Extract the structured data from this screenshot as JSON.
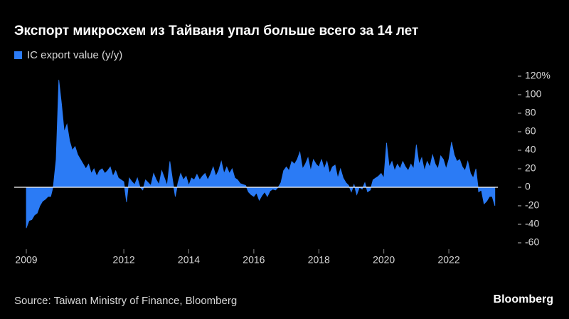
{
  "chart_data": {
    "type": "area",
    "title": "Экспорт микросхем из Тайваня упал больше всего за 14 лет",
    "source": "Source: Taiwan Ministry of Finance, Bloomberg",
    "brand": "Bloomberg",
    "categories": [
      "2009",
      null,
      null,
      null,
      null,
      null,
      null,
      null,
      null,
      null,
      null,
      null,
      null,
      null,
      null,
      null,
      null,
      null,
      null,
      null,
      null,
      null,
      null,
      null,
      null,
      null,
      null,
      null,
      null,
      null,
      null,
      null,
      null,
      null,
      null,
      null,
      "2012",
      null,
      null,
      null,
      null,
      null,
      null,
      null,
      null,
      null,
      null,
      null,
      null,
      null,
      null,
      null,
      null,
      null,
      null,
      null,
      null,
      null,
      null,
      null,
      "2014",
      null,
      null,
      null,
      null,
      null,
      null,
      null,
      null,
      null,
      null,
      null,
      null,
      null,
      null,
      null,
      null,
      null,
      null,
      null,
      null,
      null,
      null,
      null,
      "2016",
      null,
      null,
      null,
      null,
      null,
      null,
      null,
      null,
      null,
      null,
      null,
      null,
      null,
      null,
      null,
      null,
      null,
      null,
      null,
      null,
      null,
      null,
      null,
      "2018",
      null,
      null,
      null,
      null,
      null,
      null,
      null,
      null,
      null,
      null,
      null,
      null,
      null,
      null,
      null,
      null,
      null,
      null,
      null,
      null,
      null,
      null,
      null,
      "2020",
      null,
      null,
      null,
      null,
      null,
      null,
      null,
      null,
      null,
      null,
      null,
      null,
      null,
      null,
      null,
      null,
      null,
      null,
      null,
      null,
      null,
      null,
      null,
      "2022",
      null,
      null,
      null,
      null,
      null,
      null,
      null,
      null,
      null,
      null,
      null,
      null,
      null,
      null,
      null,
      null,
      null
    ],
    "series": [
      {
        "name": "IC export value (y/y)",
        "color": "#2b7bf5",
        "values": [
          -44,
          -36,
          -35,
          -30,
          -28,
          -20,
          -15,
          -13,
          -10,
          -10,
          2,
          30,
          116,
          90,
          60,
          68,
          50,
          40,
          44,
          35,
          30,
          25,
          20,
          25,
          15,
          20,
          12,
          18,
          20,
          15,
          18,
          22,
          12,
          18,
          10,
          8,
          6,
          -16,
          10,
          6,
          3,
          10,
          0,
          -3,
          8,
          5,
          2,
          15,
          8,
          3,
          18,
          10,
          2,
          28,
          8,
          -10,
          5,
          15,
          8,
          12,
          2,
          10,
          8,
          14,
          8,
          12,
          15,
          8,
          14,
          22,
          12,
          18,
          28,
          15,
          22,
          15,
          20,
          10,
          8,
          4,
          3,
          2,
          -5,
          -8,
          -10,
          -6,
          -14,
          -9,
          -5,
          -10,
          -4,
          -2,
          -3,
          0,
          5,
          18,
          22,
          18,
          28,
          25,
          30,
          38,
          20,
          25,
          32,
          18,
          30,
          25,
          22,
          30,
          20,
          28,
          15,
          22,
          24,
          10,
          20,
          10,
          5,
          2,
          -5,
          3,
          -8,
          0,
          -2,
          5,
          -5,
          -3,
          8,
          10,
          12,
          15,
          10,
          48,
          22,
          28,
          18,
          25,
          20,
          28,
          22,
          18,
          25,
          20,
          46,
          25,
          32,
          18,
          28,
          22,
          35,
          25,
          20,
          34,
          30,
          20,
          30,
          49,
          35,
          28,
          30,
          22,
          18,
          28,
          15,
          10,
          20,
          -5,
          -3,
          -18,
          -15,
          -10,
          -10,
          -20
        ]
      }
    ],
    "ylim": [
      -65,
      125
    ],
    "yticks": [
      -60,
      -40,
      -20,
      0,
      20,
      40,
      60,
      80,
      100,
      {
        "value": 120,
        "label": "120%"
      }
    ],
    "legend": "top-left"
  }
}
